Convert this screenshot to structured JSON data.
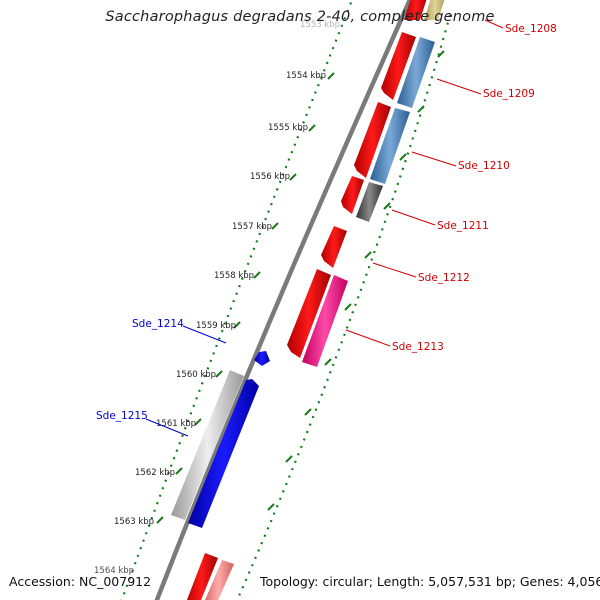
{
  "title": "Saccharophagus degradans 2-40, complete genome",
  "footer": {
    "accession": "Accession: NC_007912",
    "topology": "Topology: circular; Length: 5,057,531 bp; Genes: 4,056"
  },
  "colors": {
    "forward_gene_label": "#cc0000",
    "reverse_gene_label": "#0000cc",
    "backbone": "#7a7a7a",
    "ticks": "#1a7a1a"
  },
  "kbp_labels": [
    "1553 kbp",
    "1554 kbp",
    "1555 kbp",
    "1556 kbp",
    "1557 kbp",
    "1558 kbp",
    "1559 kbp",
    "1560 kbp",
    "1561 kbp",
    "1562 kbp",
    "1563 kbp",
    "1564 kbp"
  ],
  "genes_forward": [
    "Sde_1208",
    "Sde_1209",
    "Sde_1210",
    "Sde_1211",
    "Sde_1212",
    "Sde_1213"
  ],
  "genes_reverse": [
    "Sde_1214",
    "Sde_1215"
  ]
}
